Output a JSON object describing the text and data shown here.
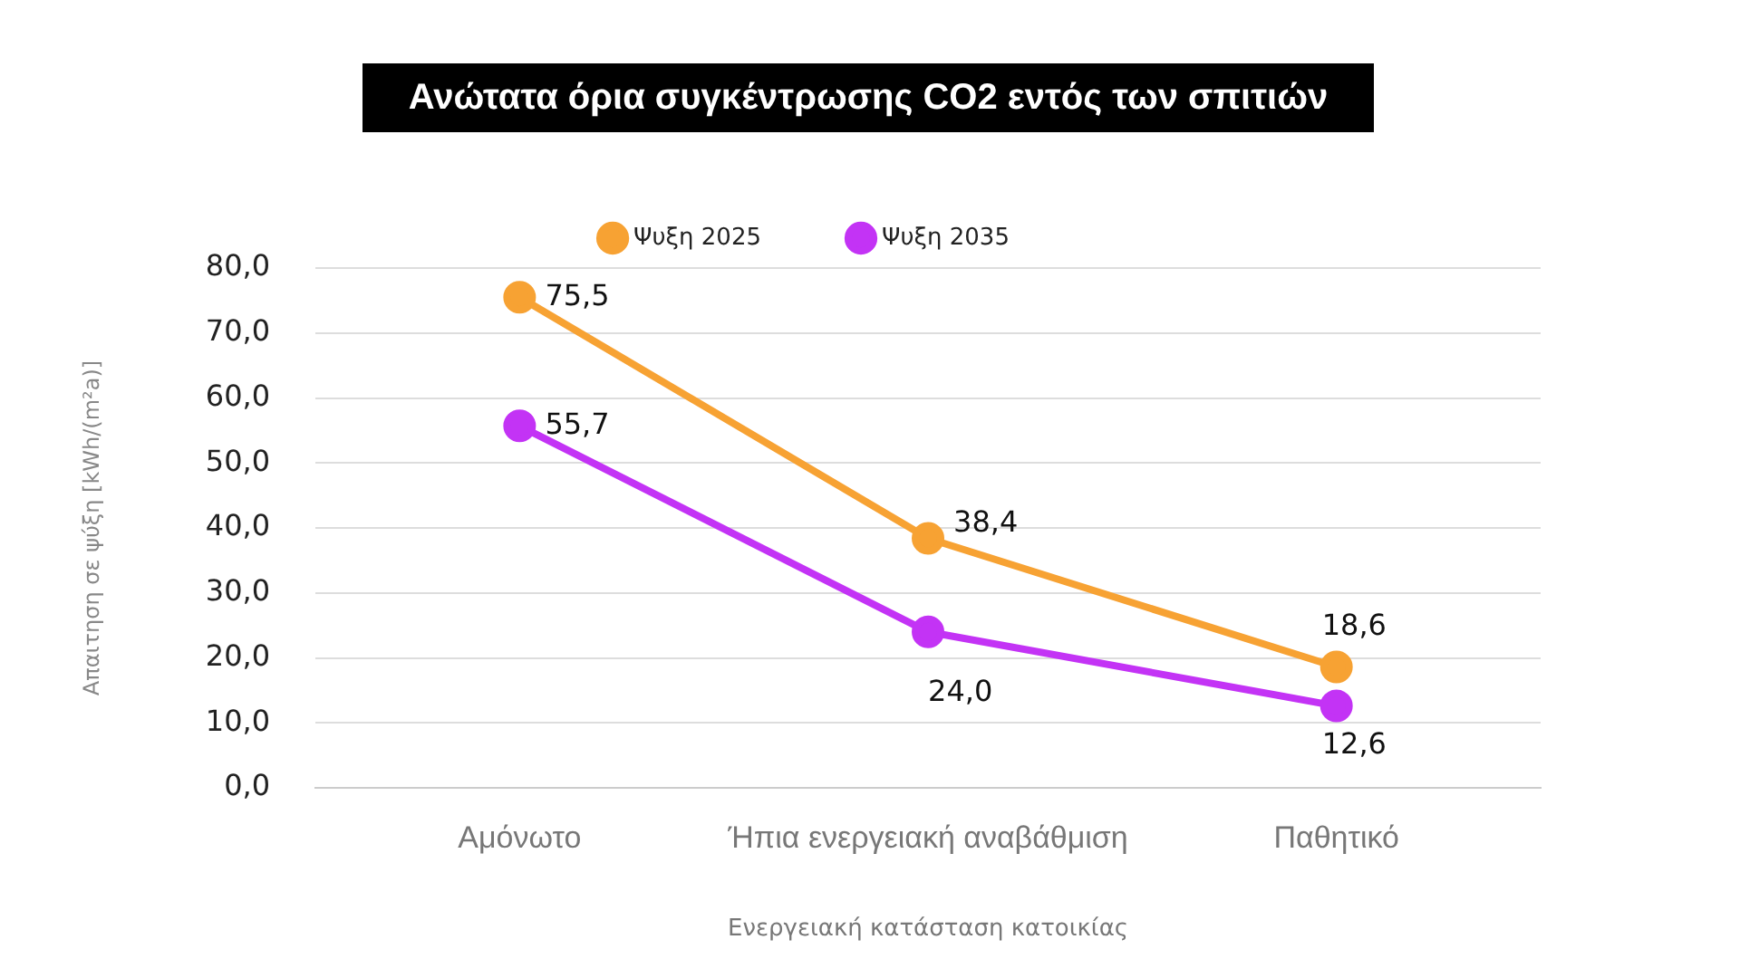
{
  "chart_data": {
    "type": "line",
    "title": "Ανώτατα όρια συγκέντρωσης CO2 εντός των σπιτιών",
    "xlabel": "Ενεργειακή κατάσταση κατοικίας",
    "ylabel": "Απαιτηση σε ψύξη [kWh/(m²a)]",
    "categories": [
      "Αμόνωτο",
      "Ήπια ενεργειακή αναβάθμιση",
      "Παθητικό"
    ],
    "series": [
      {
        "name": "Ψυξη 2025",
        "color": "#f7a233",
        "values": [
          75.5,
          38.4,
          18.6
        ],
        "value_labels": [
          "75,5",
          "38,4",
          "18,6"
        ]
      },
      {
        "name": "Ψυξη 2035",
        "color": "#c333f5",
        "values": [
          55.7,
          24.0,
          12.6
        ],
        "value_labels": [
          "55,7",
          "24,0",
          "12,6"
        ]
      }
    ],
    "ylim": [
      0,
      80
    ],
    "yticks": [
      {
        "value": 0,
        "label": "0,0"
      },
      {
        "value": 10,
        "label": "10,0"
      },
      {
        "value": 20,
        "label": "20,0"
      },
      {
        "value": 30,
        "label": "30,0"
      },
      {
        "value": 40,
        "label": "40,0"
      },
      {
        "value": 50,
        "label": "50,0"
      },
      {
        "value": 60,
        "label": "60,0"
      },
      {
        "value": 70,
        "label": "70,0"
      },
      {
        "value": 80,
        "label": "80,0"
      }
    ],
    "grid": "y",
    "legend": "top",
    "marker": "circle",
    "line_style": "solid"
  }
}
